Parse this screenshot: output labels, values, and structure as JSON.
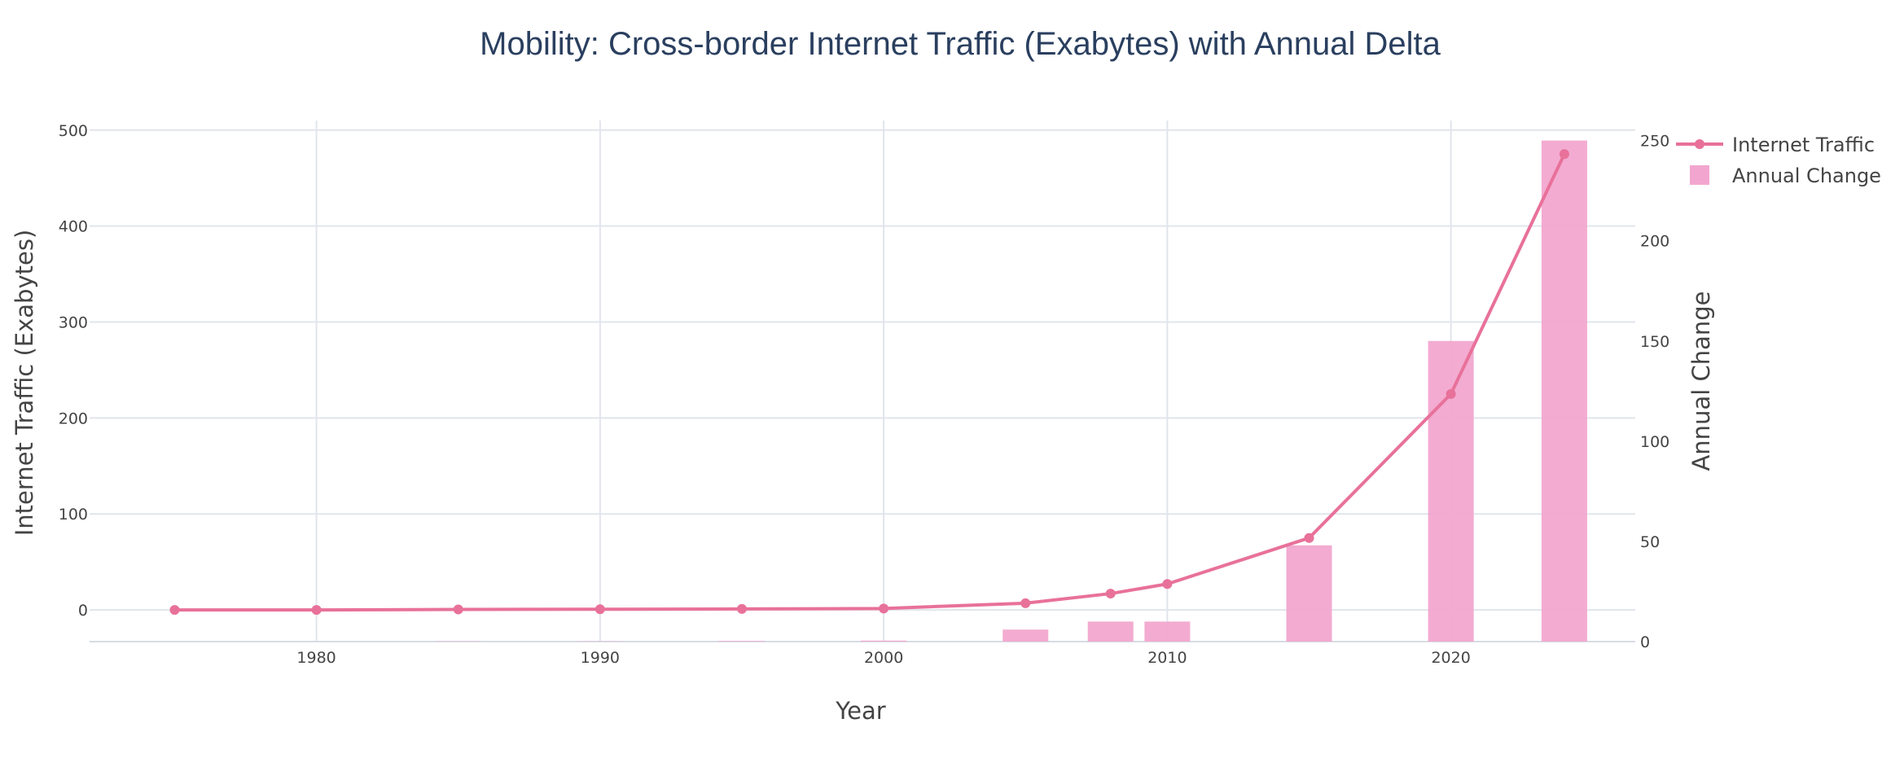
{
  "chart_data": {
    "type": "line+bar",
    "title": "Mobility: Cross-border Internet Traffic (Exabytes) with Annual Delta",
    "xlabel": "Year",
    "ylabel": "Internet Traffic (Exabytes)",
    "y2label": "Annual Change",
    "xticks": [
      1980,
      1990,
      2000,
      2010,
      2020
    ],
    "yticks": [
      0,
      100,
      200,
      300,
      400,
      500
    ],
    "y2ticks": [
      0,
      50,
      100,
      150,
      200,
      250
    ],
    "xlim": [
      1972,
      2026.5
    ],
    "ylim": [
      -33,
      510
    ],
    "y2lim": [
      0,
      260
    ],
    "grid": true,
    "legend_position": "top-right",
    "colors": {
      "line": "#e8719a",
      "bar": "#f2a6cf",
      "grid": "#e1e5ec",
      "text": "#444444",
      "title": "#2a3f5f"
    },
    "series": [
      {
        "name": "Internet Traffic",
        "type": "line",
        "x": [
          1975,
          1980,
          1985,
          1990,
          1995,
          2000,
          2005,
          2008,
          2010,
          2015,
          2020,
          2024
        ],
        "values": [
          0,
          0,
          0.5,
          0.7,
          1,
          1.5,
          7,
          17,
          27,
          75,
          225,
          475
        ]
      },
      {
        "name": "Annual Change",
        "type": "bar",
        "axis": "y2",
        "x": [
          1975,
          1980,
          1985,
          1990,
          1995,
          2000,
          2005,
          2008,
          2010,
          2015,
          2020,
          2024
        ],
        "values": [
          0,
          0,
          0.1,
          0.1,
          0.3,
          0.5,
          6,
          10,
          10,
          48,
          150,
          250
        ]
      }
    ]
  }
}
